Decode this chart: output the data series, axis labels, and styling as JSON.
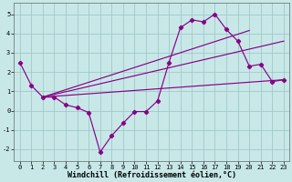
{
  "xlabel": "Windchill (Refroidissement éolien,°C)",
  "bg_color": "#c8e8e8",
  "grid_color": "#a0c8c8",
  "line_color": "#880088",
  "xlim": [
    -0.5,
    23.5
  ],
  "ylim": [
    -2.6,
    5.6
  ],
  "xticks": [
    0,
    1,
    2,
    3,
    4,
    5,
    6,
    7,
    8,
    9,
    10,
    11,
    12,
    13,
    14,
    15,
    16,
    17,
    18,
    19,
    20,
    21,
    22,
    23
  ],
  "yticks": [
    -2,
    -1,
    0,
    1,
    2,
    3,
    4,
    5
  ],
  "main_x": [
    0,
    1,
    2,
    3,
    4,
    5,
    6,
    7,
    8,
    9,
    10,
    11,
    12,
    13,
    14,
    15,
    16,
    17,
    18,
    19,
    20,
    21,
    22,
    23
  ],
  "main_y": [
    2.5,
    1.3,
    0.7,
    0.7,
    0.3,
    0.15,
    -0.1,
    -2.15,
    -1.3,
    -0.65,
    -0.05,
    -0.05,
    0.5,
    2.5,
    4.3,
    4.7,
    4.6,
    5.0,
    4.2,
    3.6,
    2.3,
    2.4,
    1.5,
    1.6
  ],
  "line1_x": [
    2,
    23
  ],
  "line1_y": [
    0.7,
    1.6
  ],
  "line2_x": [
    2,
    23
  ],
  "line2_y": [
    0.7,
    3.6
  ],
  "line3_x": [
    2,
    20
  ],
  "line3_y": [
    0.7,
    4.15
  ],
  "marker": "D",
  "markersize": 2.2,
  "linewidth": 0.85,
  "tick_fontsize": 5.0,
  "label_fontsize": 6.0
}
